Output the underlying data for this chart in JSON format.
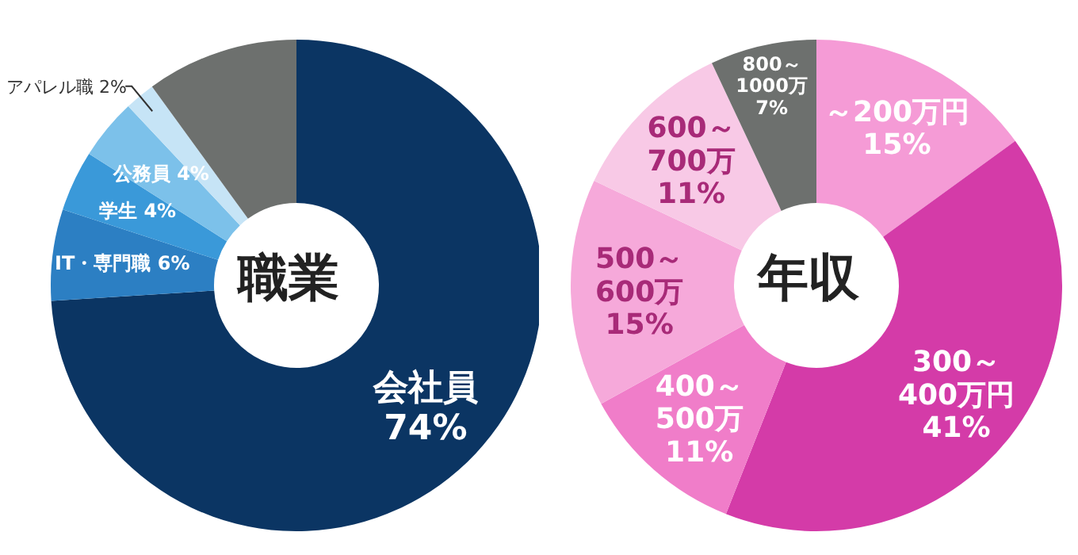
{
  "chart_data": [
    {
      "type": "donut",
      "title": "職業",
      "categories": [
        "会社員",
        "IT・専門職",
        "学生",
        "公務員",
        "アパレル職",
        null
      ],
      "values": [
        74,
        6,
        4,
        4,
        2,
        10
      ],
      "value_labels": [
        "74%",
        "6%",
        "4%",
        "4%",
        "2%",
        null
      ],
      "colors": [
        "#0b3563",
        "#2c7fc3",
        "#3a99d9",
        "#7cc1ea",
        "#c6e4f6",
        "#6d706e"
      ],
      "legend": false
    },
    {
      "type": "donut",
      "title": "年収",
      "categories": [
        "～200万円",
        "300～400万円",
        "400～500万",
        "500～600万",
        "600～700万",
        "800～1000万"
      ],
      "values": [
        15,
        41,
        11,
        15,
        11,
        7
      ],
      "value_labels": [
        "15%",
        "41%",
        "11%",
        "15%",
        "11%",
        "7%"
      ],
      "colors": [
        "#f59bd6",
        "#d43ba8",
        "#f07dc9",
        "#f6a9da",
        "#f8c9e6",
        "#6d706e"
      ],
      "legend": false
    }
  ]
}
